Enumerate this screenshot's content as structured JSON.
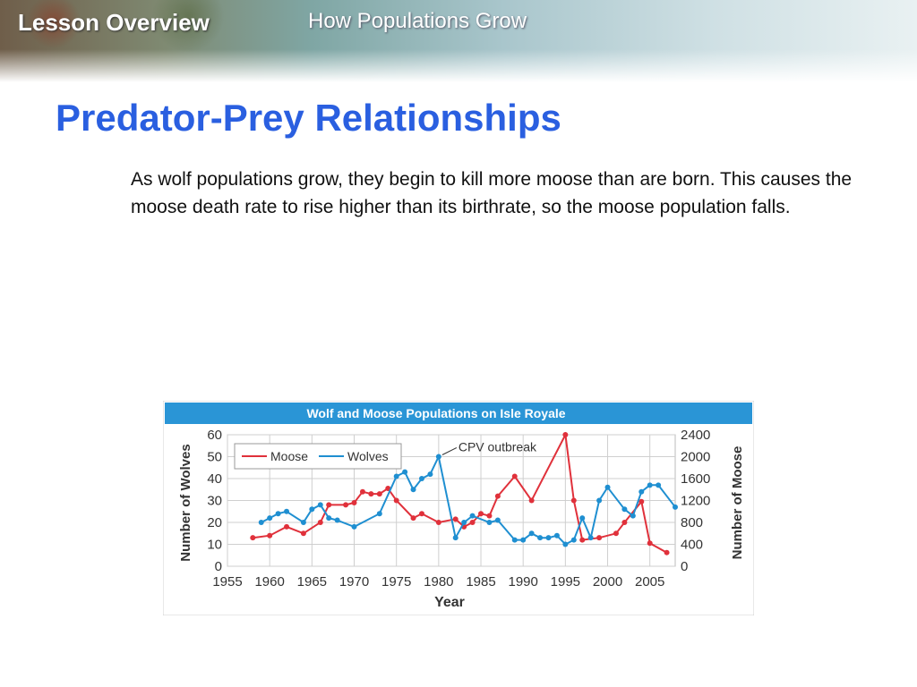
{
  "header": {
    "lesson": "Lesson Overview",
    "topic": "How Populations Grow"
  },
  "slide": {
    "title": "Predator-Prey Relationships",
    "body": "As wolf populations grow, they begin to kill more moose than are born. This causes the moose death rate to rise higher than its birthrate, so the moose population falls."
  },
  "colors": {
    "moose": "#e0313b",
    "wolves": "#1f8fd1",
    "title_bar": "#2a95d6"
  },
  "chart_data": {
    "type": "line",
    "title": "Wolf and  Moose Populations on Isle Royale",
    "xlabel": "Year",
    "ylabel": "Number of Wolves",
    "y2label": "Number of Moose",
    "xlim": [
      1955,
      2008
    ],
    "ylim": [
      0,
      60
    ],
    "y2lim": [
      0,
      2400
    ],
    "xticks": [
      "1955",
      "1960",
      "1965",
      "1970",
      "1975",
      "1980",
      "1985",
      "1990",
      "1995",
      "2000",
      "2005"
    ],
    "yticks": [
      "0",
      "10",
      "20",
      "30",
      "40",
      "50",
      "60"
    ],
    "y2ticks": [
      "0",
      "400",
      "800",
      "1200",
      "1600",
      "2000",
      "2400"
    ],
    "legend_position": "top-left",
    "grid": true,
    "annotation": {
      "text": "CPV outbreak",
      "x": 1980,
      "y": 50
    },
    "series": [
      {
        "name": "Moose",
        "axis": "right",
        "points": [
          [
            1958,
            520
          ],
          [
            1960,
            560
          ],
          [
            1962,
            720
          ],
          [
            1964,
            600
          ],
          [
            1966,
            800
          ],
          [
            1967,
            1120
          ],
          [
            1969,
            1120
          ],
          [
            1970,
            1160
          ],
          [
            1971,
            1360
          ],
          [
            1972,
            1320
          ],
          [
            1973,
            1320
          ],
          [
            1974,
            1420
          ],
          [
            1975,
            1200
          ],
          [
            1977,
            880
          ],
          [
            1978,
            960
          ],
          [
            1980,
            800
          ],
          [
            1982,
            860
          ],
          [
            1983,
            720
          ],
          [
            1984,
            800
          ],
          [
            1985,
            960
          ],
          [
            1986,
            920
          ],
          [
            1987,
            1280
          ],
          [
            1989,
            1640
          ],
          [
            1991,
            1200
          ],
          [
            1995,
            2400
          ],
          [
            1996,
            1200
          ],
          [
            1997,
            480
          ],
          [
            1999,
            520
          ],
          [
            2001,
            600
          ],
          [
            2002,
            800
          ],
          [
            2004,
            1180
          ],
          [
            2005,
            420
          ],
          [
            2007,
            250
          ]
        ]
      },
      {
        "name": "Wolves",
        "axis": "left",
        "points": [
          [
            1959,
            20
          ],
          [
            1960,
            22
          ],
          [
            1961,
            24
          ],
          [
            1962,
            25
          ],
          [
            1964,
            20
          ],
          [
            1965,
            26
          ],
          [
            1966,
            28
          ],
          [
            1967,
            22
          ],
          [
            1968,
            21
          ],
          [
            1970,
            18
          ],
          [
            1973,
            24
          ],
          [
            1975,
            41
          ],
          [
            1976,
            43
          ],
          [
            1977,
            35
          ],
          [
            1978,
            40
          ],
          [
            1979,
            42
          ],
          [
            1980,
            50
          ],
          [
            1982,
            13
          ],
          [
            1983,
            20
          ],
          [
            1984,
            23
          ],
          [
            1986,
            20
          ],
          [
            1987,
            21
          ],
          [
            1989,
            12
          ],
          [
            1990,
            12
          ],
          [
            1991,
            15
          ],
          [
            1992,
            13
          ],
          [
            1993,
            13
          ],
          [
            1994,
            14
          ],
          [
            1995,
            10
          ],
          [
            1996,
            12
          ],
          [
            1997,
            22
          ],
          [
            1998,
            13
          ],
          [
            1999,
            30
          ],
          [
            2000,
            36
          ],
          [
            2002,
            26
          ],
          [
            2003,
            23
          ],
          [
            2004,
            34
          ],
          [
            2005,
            37
          ],
          [
            2006,
            37
          ],
          [
            2008,
            27
          ]
        ]
      }
    ]
  }
}
